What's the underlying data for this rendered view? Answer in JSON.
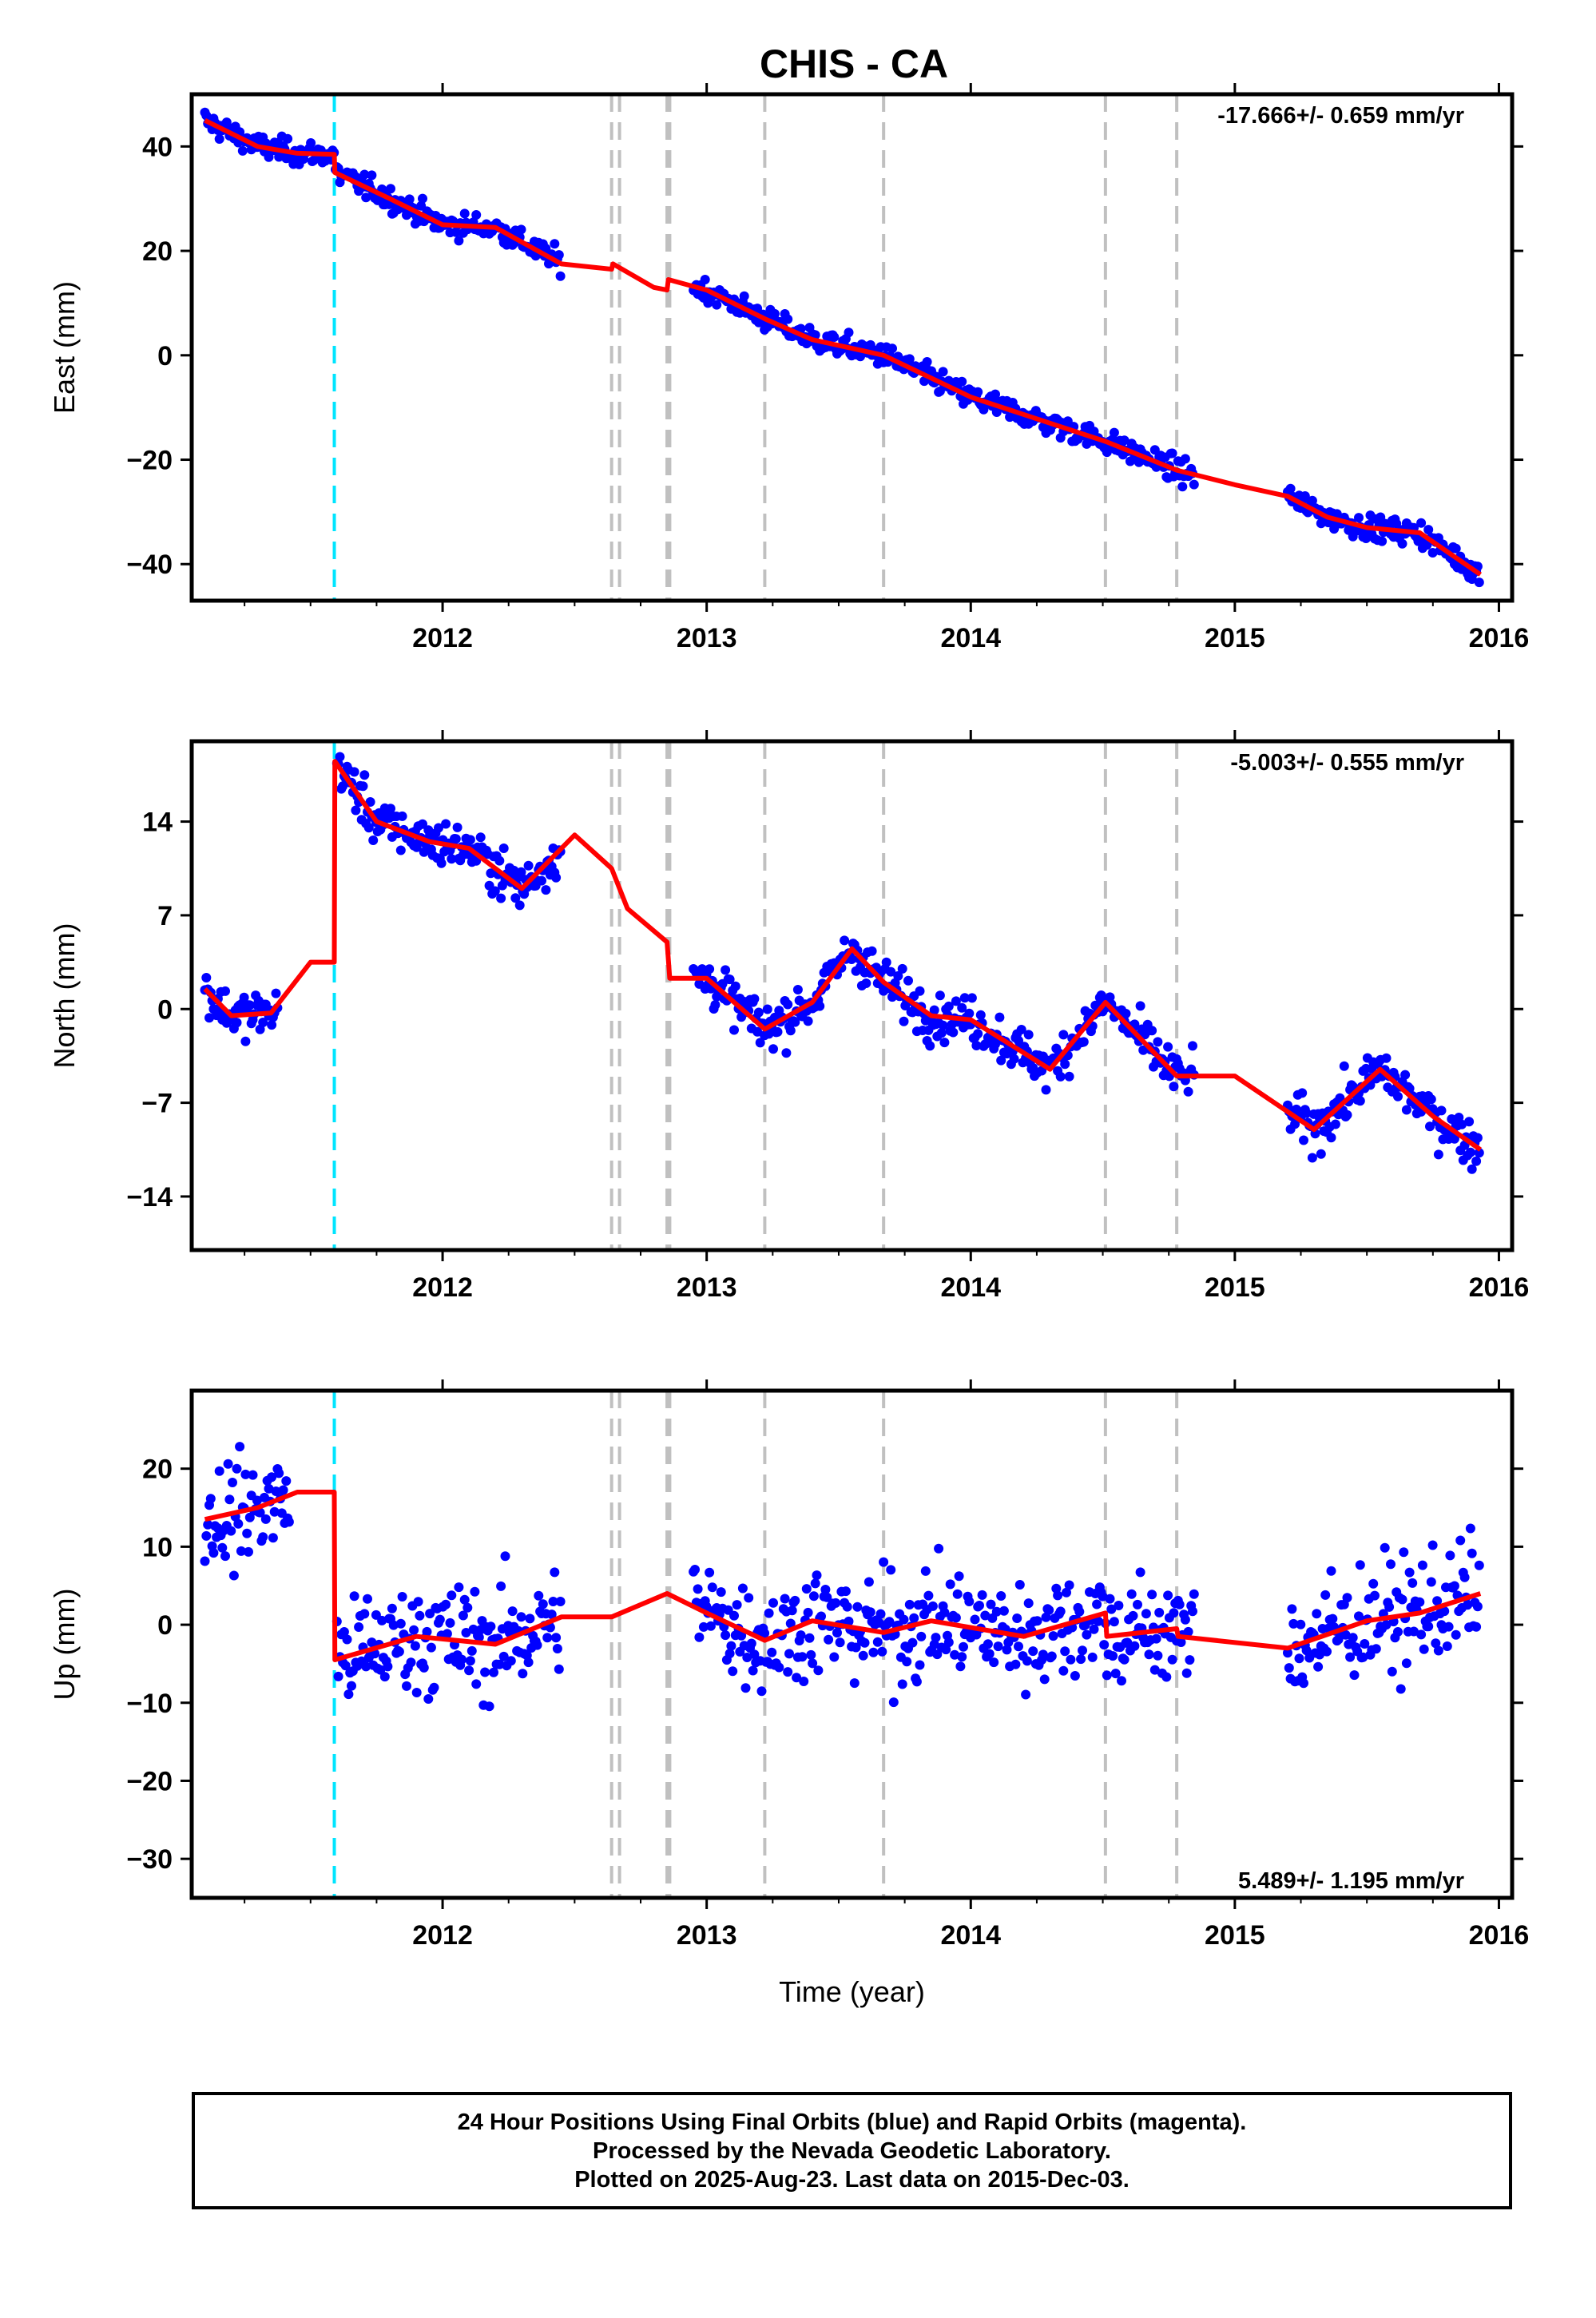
{
  "station_title": "CHIS - CA",
  "footer": {
    "line1": "24 Hour Positions Using Final Orbits (blue) and Rapid Orbits (magenta).",
    "line2": "Processed by the Nevada Geodetic Laboratory.",
    "line3": "Plotted on 2025-Aug-23. Last data on 2015-Dec-03."
  },
  "colors": {
    "points": "#0000ff",
    "model": "#ff0000",
    "antenna_change": "#00e5ff",
    "event_lines": "#c0c0c0"
  },
  "events": {
    "antenna_change_year": 2011.59,
    "event_years": [
      2012.64,
      2012.67,
      2012.85,
      2012.86,
      2013.22,
      2013.67,
      2014.51,
      2014.78
    ]
  },
  "chart_data": [
    {
      "type": "scatter",
      "panel": "east",
      "ylabel": "East (mm)",
      "xlim": [
        2011.05,
        2016.05
      ],
      "ylim": [
        -47,
        50
      ],
      "yticks": [
        40,
        20,
        0,
        -20,
        -40
      ],
      "xticks": [
        2012,
        2013,
        2014,
        2015,
        2016
      ],
      "rate_text": "-17.666+/- 0.659 mm/yr",
      "rate_position": "top-right",
      "data_span": [
        [
          2011.1,
          2012.45
        ],
        [
          2012.95,
          2014.85
        ],
        [
          2015.2,
          2015.93
        ]
      ],
      "trend": {
        "rate_mm_yr": -17.666,
        "offset_mm": 43.5,
        "noise_mm": 1.6
      },
      "model": [
        [
          2011.1,
          45
        ],
        [
          2011.3,
          40
        ],
        [
          2011.45,
          38.7
        ],
        [
          2011.59,
          38.5
        ],
        [
          2011.592,
          35
        ],
        [
          2011.8,
          30
        ],
        [
          2012.0,
          25
        ],
        [
          2012.2,
          24.5
        ],
        [
          2012.45,
          17.5
        ],
        [
          2012.64,
          16.5
        ],
        [
          2012.645,
          17.5
        ],
        [
          2012.8,
          13
        ],
        [
          2012.85,
          12.5
        ],
        [
          2012.855,
          14.5
        ],
        [
          2013.0,
          12.5
        ],
        [
          2013.22,
          7
        ],
        [
          2013.4,
          3
        ],
        [
          2013.67,
          0
        ],
        [
          2014.0,
          -8
        ],
        [
          2014.3,
          -13
        ],
        [
          2014.51,
          -16.5
        ],
        [
          2014.78,
          -22
        ],
        [
          2015.0,
          -24.8
        ],
        [
          2015.2,
          -27
        ],
        [
          2015.35,
          -31
        ],
        [
          2015.5,
          -33
        ],
        [
          2015.7,
          -34
        ],
        [
          2015.93,
          -42
        ]
      ]
    },
    {
      "type": "scatter",
      "panel": "north",
      "ylabel": "North (mm)",
      "xlim": [
        2011.05,
        2016.05
      ],
      "ylim": [
        -18,
        20
      ],
      "yticks": [
        14,
        7,
        0,
        -7,
        -14
      ],
      "xticks": [
        2012,
        2013,
        2014,
        2015,
        2016
      ],
      "rate_text": "-5.003+/- 0.555 mm/yr",
      "rate_position": "top-right",
      "data_span": [
        [
          2011.1,
          2011.38
        ],
        [
          2011.6,
          2012.45
        ],
        [
          2012.95,
          2014.85
        ],
        [
          2015.2,
          2015.93
        ]
      ],
      "trend": {
        "rate_mm_yr": -5.003,
        "offset_mm": 2,
        "noise_mm": 1.2
      },
      "model": [
        [
          2011.1,
          1.5
        ],
        [
          2011.2,
          -0.5
        ],
        [
          2011.35,
          -0.3
        ],
        [
          2011.5,
          3.5
        ],
        [
          2011.59,
          3.5
        ],
        [
          2011.592,
          18.5
        ],
        [
          2011.75,
          14
        ],
        [
          2011.95,
          12.5
        ],
        [
          2012.1,
          12
        ],
        [
          2012.3,
          9
        ],
        [
          2012.5,
          13
        ],
        [
          2012.64,
          10.5
        ],
        [
          2012.7,
          7.5
        ],
        [
          2012.85,
          5
        ],
        [
          2012.86,
          2.3
        ],
        [
          2013.0,
          2.3
        ],
        [
          2013.22,
          -1.5
        ],
        [
          2013.4,
          0.5
        ],
        [
          2013.55,
          4.5
        ],
        [
          2013.67,
          2
        ],
        [
          2013.85,
          -0.5
        ],
        [
          2014.0,
          -0.8
        ],
        [
          2014.3,
          -4.5
        ],
        [
          2014.51,
          0.5
        ],
        [
          2014.78,
          -5
        ],
        [
          2015.0,
          -5
        ],
        [
          2015.3,
          -9
        ],
        [
          2015.55,
          -4.5
        ],
        [
          2015.75,
          -8
        ],
        [
          2015.93,
          -10.5
        ]
      ]
    },
    {
      "type": "scatter",
      "panel": "up",
      "ylabel": "Up (mm)",
      "xlabel": "Time (year)",
      "xlim": [
        2011.05,
        2016.05
      ],
      "ylim": [
        -35,
        30
      ],
      "yticks": [
        20,
        10,
        0,
        -10,
        -20,
        -30
      ],
      "xticks": [
        2012,
        2013,
        2014,
        2015,
        2016
      ],
      "rate_text": "5.489+/- 1.195 mm/yr",
      "rate_position": "bottom-right",
      "data_span": [
        [
          2011.1,
          2011.42
        ],
        [
          2011.6,
          2012.45
        ],
        [
          2012.95,
          2014.85
        ],
        [
          2015.2,
          2015.93
        ]
      ],
      "trend": {
        "rate_mm_yr": 5.489,
        "offset_mm": 0,
        "noise_mm": 5
      },
      "model": [
        [
          2011.1,
          13.5
        ],
        [
          2011.3,
          15
        ],
        [
          2011.45,
          17
        ],
        [
          2011.59,
          17
        ],
        [
          2011.592,
          -4.5
        ],
        [
          2011.9,
          -1.5
        ],
        [
          2012.2,
          -2.5
        ],
        [
          2012.45,
          1
        ],
        [
          2012.64,
          1
        ],
        [
          2012.85,
          4
        ],
        [
          2013.0,
          1.5
        ],
        [
          2013.22,
          -2
        ],
        [
          2013.4,
          0.5
        ],
        [
          2013.67,
          -1
        ],
        [
          2013.85,
          0.5
        ],
        [
          2014.2,
          -1.5
        ],
        [
          2014.51,
          1.5
        ],
        [
          2014.515,
          -1.5
        ],
        [
          2014.78,
          -0.5
        ],
        [
          2014.785,
          -1.5
        ],
        [
          2015.2,
          -3
        ],
        [
          2015.5,
          0.5
        ],
        [
          2015.7,
          1.5
        ],
        [
          2015.93,
          4
        ]
      ]
    }
  ]
}
